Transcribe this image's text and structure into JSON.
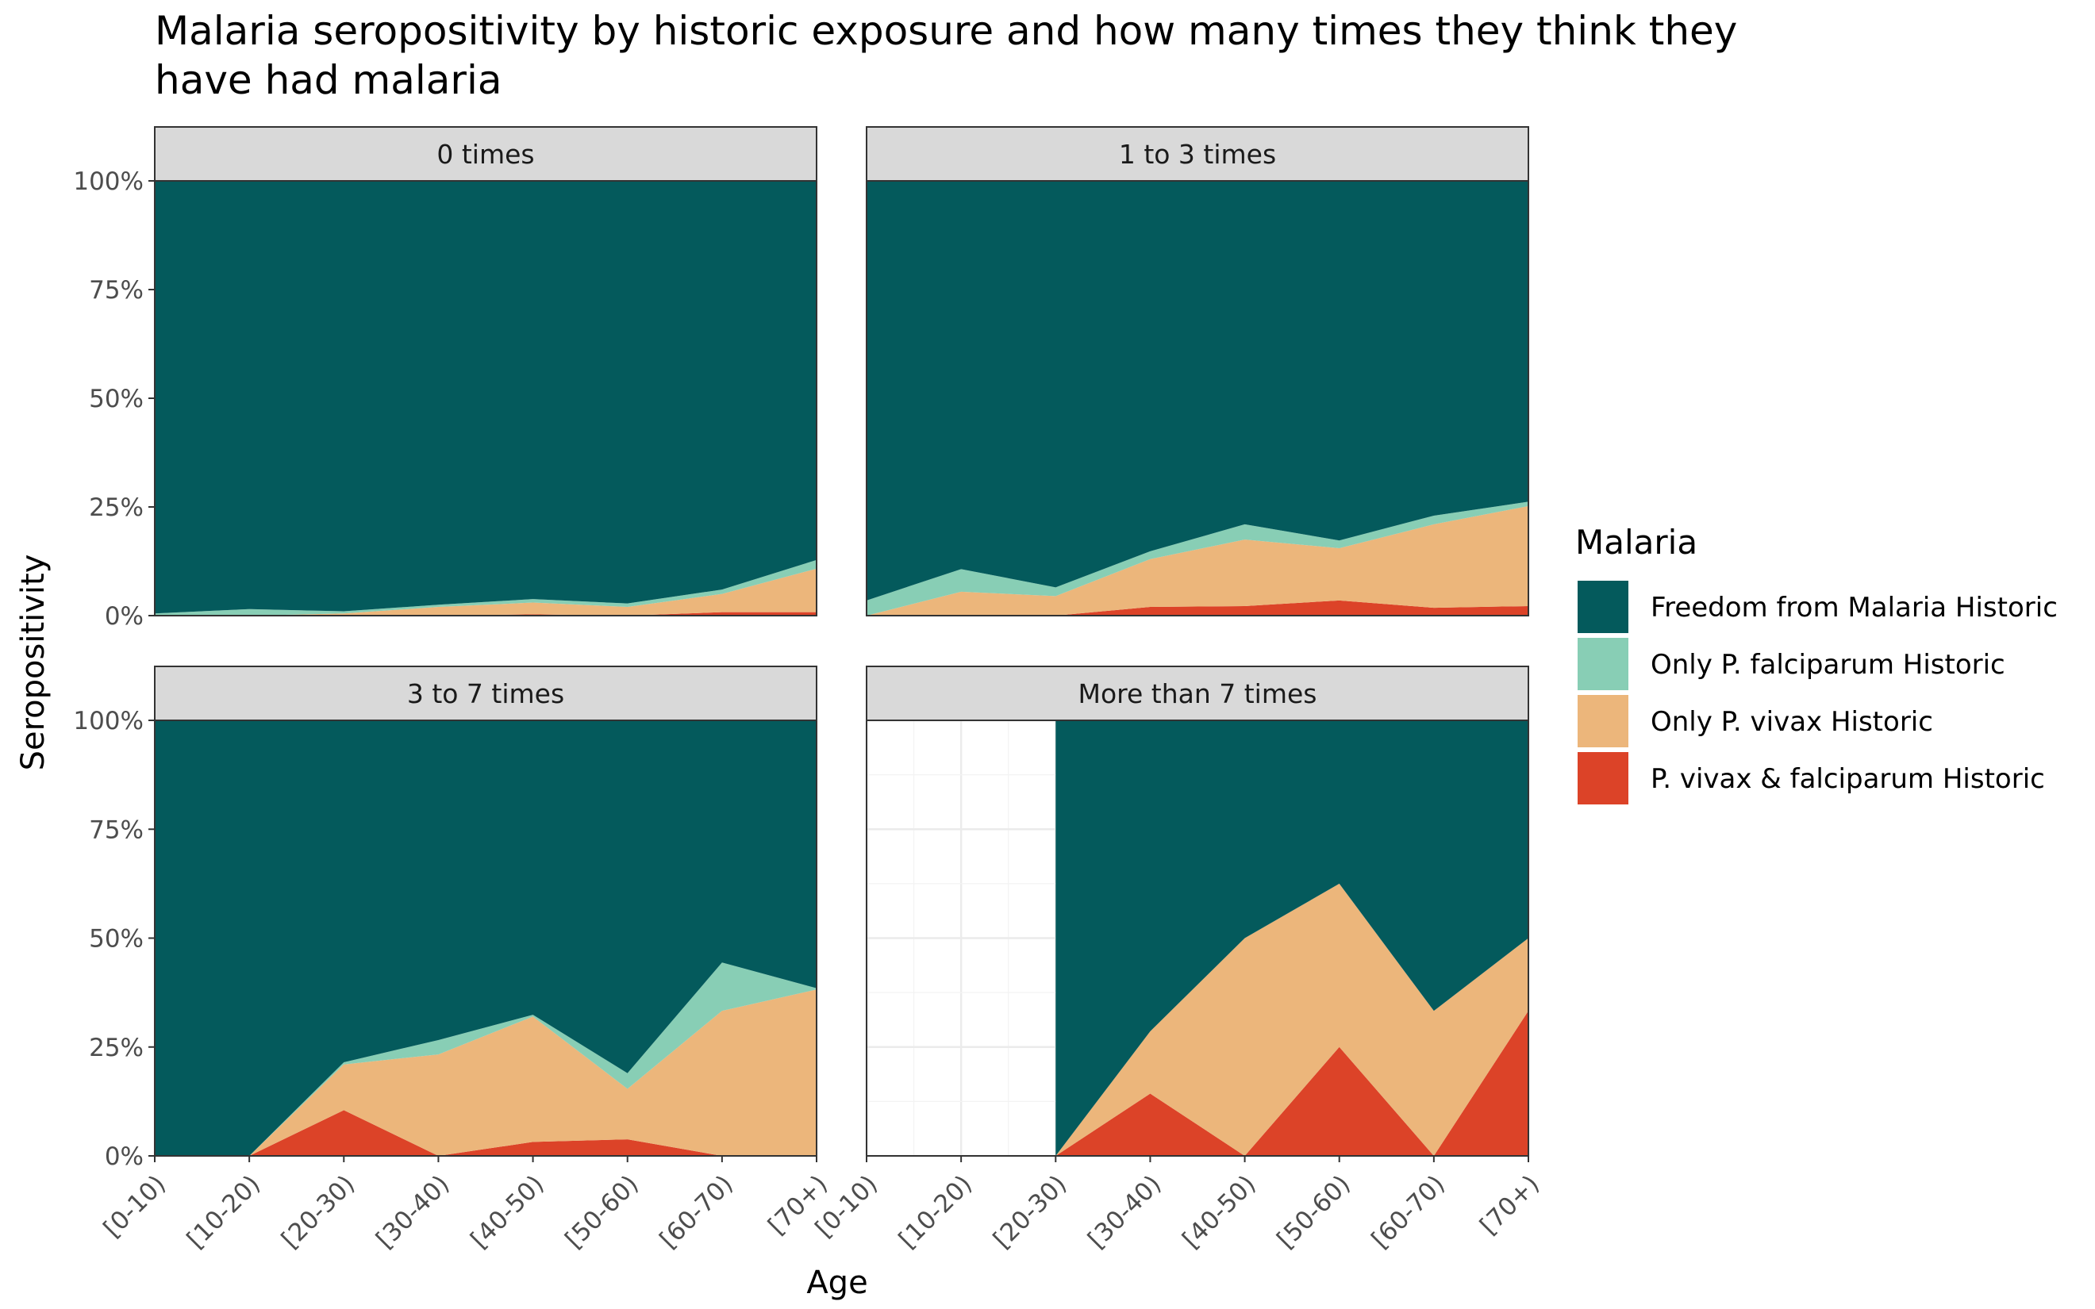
{
  "chart_data": {
    "type": "area",
    "stacked": true,
    "title_line1": "Malaria seropositivity by historic exposure and how many times they think they",
    "title_line2": "have had malaria",
    "xlabel": "Age",
    "ylabel": "Seropositivity",
    "categories": [
      "[0-10)",
      "[10-20)",
      "[20-30)",
      "[30-40)",
      "[40-50)",
      "[50-60)",
      "[60-70)",
      "[70+)"
    ],
    "y_ticks": [
      "0%",
      "25%",
      "50%",
      "75%",
      "100%"
    ],
    "y_tick_values": [
      0,
      25,
      50,
      75,
      100
    ],
    "ylim": [
      0,
      100
    ],
    "grid": true,
    "legend": {
      "title": "Malaria",
      "position": "right",
      "items": [
        {
          "label": "Freedom from Malaria Historic",
          "color": "#045A5C"
        },
        {
          "label": "Only P. falciparum Historic",
          "color": "#88CEB5"
        },
        {
          "label": "Only P. vivax Historic",
          "color": "#ECB67B"
        },
        {
          "label": "P. vivax & falciparum Historic",
          "color": "#DC4328"
        }
      ]
    },
    "panels": [
      {
        "strip": "0 times",
        "start_index": 0,
        "series": [
          {
            "name": "P. vivax & falciparum Historic",
            "values": [
              0,
              0,
              0,
              0,
              0.3,
              0,
              0.8,
              0.8
            ]
          },
          {
            "name": "Only P. vivax Historic",
            "values": [
              0,
              0,
              0.5,
              2,
              2.7,
              2,
              4.2,
              10
            ]
          },
          {
            "name": "Only P. falciparum Historic",
            "values": [
              0.5,
              1.5,
              0.5,
              0.5,
              0.8,
              0.8,
              1,
              2
            ]
          },
          {
            "name": "Freedom from Malaria Historic",
            "values": [
              99.5,
              98.5,
              99,
              97.5,
              96.2,
              97.2,
              94,
              87.2
            ]
          }
        ]
      },
      {
        "strip": "1 to 3 times",
        "start_index": 0,
        "series": [
          {
            "name": "P. vivax & falciparum Historic",
            "values": [
              0,
              0,
              0,
              2,
              2.2,
              3.5,
              1.8,
              2.2
            ]
          },
          {
            "name": "Only P. vivax Historic",
            "values": [
              0,
              5.5,
              4.5,
              11,
              15.3,
              12,
              19.2,
              23
            ]
          },
          {
            "name": "Only P. falciparum Historic",
            "values": [
              3.5,
              5.2,
              2,
              1.8,
              3.5,
              1.8,
              2,
              1
            ]
          },
          {
            "name": "Freedom from Malaria Historic",
            "values": [
              96.5,
              89.3,
              93.5,
              85.2,
              79,
              82.7,
              77,
              73.8
            ]
          }
        ]
      },
      {
        "strip": "3 to 7 times",
        "start_index": 0,
        "series": [
          {
            "name": "P. vivax & falciparum Historic",
            "values": [
              0,
              0,
              10.5,
              0,
              3.2,
              3.8,
              0,
              0
            ]
          },
          {
            "name": "Only P. vivax Historic",
            "values": [
              0,
              0,
              10.5,
              23.3,
              28.8,
              11.6,
              33.3,
              38.2
            ]
          },
          {
            "name": "Only P. falciparum Historic",
            "values": [
              0,
              0,
              0.5,
              3.3,
              0.4,
              3.6,
              11.1,
              0.3
            ]
          },
          {
            "name": "Freedom from Malaria Historic",
            "values": [
              100,
              100,
              78.5,
              73.4,
              67.6,
              81,
              55.6,
              61.5
            ]
          }
        ]
      },
      {
        "strip": "More than 7 times",
        "start_index": 2,
        "series": [
          {
            "name": "P. vivax & falciparum Historic",
            "values": [
              0,
              14.3,
              0,
              25,
              0,
              33.3
            ]
          },
          {
            "name": "Only P. vivax Historic",
            "values": [
              0,
              14.3,
              50,
              37.5,
              33.3,
              16.7
            ]
          },
          {
            "name": "Only P. falciparum Historic",
            "values": [
              0,
              0,
              0,
              0,
              0,
              0
            ]
          },
          {
            "name": "Freedom from Malaria Historic",
            "values": [
              100,
              71.4,
              50,
              37.5,
              66.7,
              50
            ]
          }
        ]
      }
    ]
  }
}
